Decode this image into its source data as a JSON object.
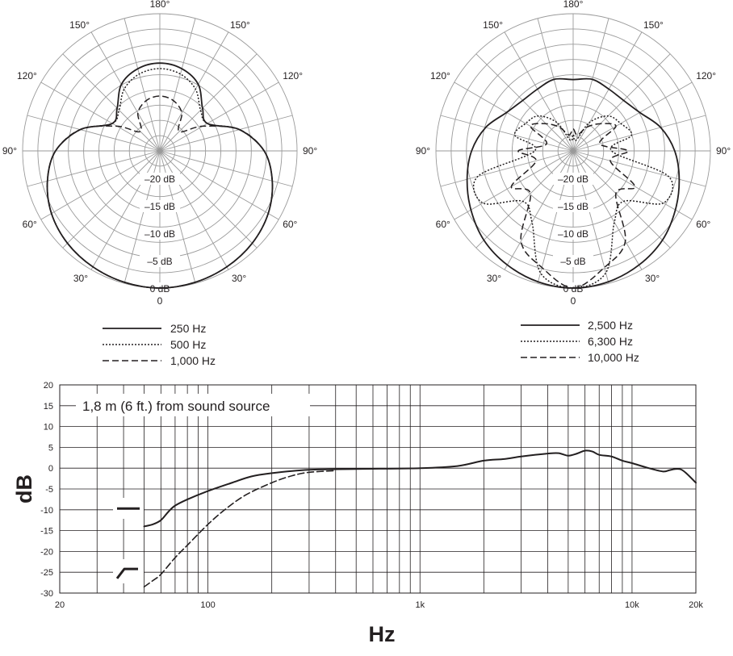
{
  "colors": {
    "ink": "#231f20",
    "grid": "#9a9a9a",
    "background": "#ffffff"
  },
  "chart_data": [
    {
      "type": "polar",
      "angle_labels": [
        "180°",
        "150°",
        "150°",
        "120°",
        "120°",
        "90°",
        "90°",
        "60°",
        "60°",
        "30°",
        "30°",
        "0"
      ],
      "ring_labels": [
        "–20 dB",
        "–15 dB",
        "–10 dB",
        "–5 dB",
        "0 dB"
      ],
      "r_range_db": [
        -25,
        0
      ],
      "grid": true,
      "legend_position": "bottom",
      "series": [
        {
          "name": "250 Hz",
          "line_style": "solid",
          "angles_deg": [
            0,
            15,
            30,
            45,
            60,
            75,
            90,
            105,
            120,
            135,
            150,
            165,
            180
          ],
          "db": [
            0,
            -0.2,
            -0.6,
            -1.2,
            -2.2,
            -3.8,
            -6,
            -10,
            -15,
            -14,
            -11,
            -9.5,
            -9
          ]
        },
        {
          "name": "500 Hz",
          "line_style": "dotted",
          "angles_deg": [
            0,
            15,
            30,
            45,
            60,
            75,
            90,
            105,
            120,
            135,
            150,
            165,
            180
          ],
          "db": [
            0,
            -0.2,
            -0.6,
            -1.2,
            -2.2,
            -3.8,
            -6,
            -10,
            -15,
            -14.5,
            -12,
            -10.5,
            -10
          ]
        },
        {
          "name": "1,000 Hz",
          "line_style": "dashed",
          "angles_deg": [
            0,
            15,
            30,
            45,
            60,
            75,
            90,
            105,
            120,
            135,
            150,
            165,
            180
          ],
          "db": [
            0,
            -0.2,
            -0.6,
            -1.2,
            -2.2,
            -3.8,
            -6,
            -10,
            -16,
            -20,
            -17,
            -15.5,
            -15
          ]
        }
      ]
    },
    {
      "type": "polar",
      "angle_labels": [
        "180°",
        "150°",
        "150°",
        "120°",
        "120°",
        "90°",
        "90°",
        "60°",
        "60°",
        "30°",
        "30°",
        "0"
      ],
      "ring_labels": [
        "–20 dB",
        "–15 dB",
        "–10 dB",
        "–5 dB",
        "0 dB"
      ],
      "r_range_db": [
        -25,
        0
      ],
      "grid": true,
      "legend_position": "bottom",
      "series": [
        {
          "name": "2,500 Hz",
          "line_style": "solid",
          "angles_deg": [
            0,
            15,
            30,
            45,
            60,
            75,
            90,
            105,
            120,
            135,
            150,
            165,
            180
          ],
          "db": [
            0,
            -0.3,
            -1,
            -2,
            -3.5,
            -5,
            -6.5,
            -8.5,
            -11,
            -12,
            -12,
            -11.5,
            -12
          ]
        },
        {
          "name": "6,300 Hz",
          "line_style": "dotted",
          "angles_deg": [
            0,
            15,
            30,
            45,
            60,
            75,
            90,
            105,
            120,
            135,
            150,
            165,
            180
          ],
          "db": [
            0,
            -2,
            -10,
            -12,
            -6,
            -7,
            -18,
            -14,
            -15,
            -16,
            -19,
            -23,
            -22
          ]
        },
        {
          "name": "10,000 Hz",
          "line_style": "dashed",
          "angles_deg": [
            0,
            15,
            30,
            45,
            60,
            75,
            90,
            105,
            120,
            135,
            150,
            165,
            180
          ],
          "db": [
            0,
            -3,
            -6,
            -14,
            -12,
            -18,
            -15,
            -20,
            -16,
            -18,
            -20,
            -22,
            -21
          ]
        }
      ]
    },
    {
      "type": "line",
      "title": "1,8 m (6 ft.) from sound source",
      "xlabel": "Hz",
      "ylabel": "dB",
      "x_scale": "log",
      "xlim": [
        20,
        20000
      ],
      "ylim": [
        -30,
        20
      ],
      "x_tick_labels": [
        {
          "value": 20,
          "label": "20"
        },
        {
          "value": 100,
          "label": "100"
        },
        {
          "value": 1000,
          "label": "1k"
        },
        {
          "value": 10000,
          "label": "10k"
        },
        {
          "value": 20000,
          "label": "20k"
        }
      ],
      "y_ticks": [
        20,
        15,
        10,
        5,
        0,
        -5,
        -10,
        -15,
        -20,
        -25,
        -30
      ],
      "y_tick_labels": [
        "20",
        "15",
        "10",
        "5",
        "0",
        "-5",
        "-10",
        "-15",
        "-20",
        "-25",
        "-30"
      ],
      "grid": true,
      "series": [
        {
          "line_style": "solid",
          "x": [
            50,
            55,
            60,
            65,
            70,
            80,
            100,
            130,
            160,
            200,
            300,
            500,
            1000,
            1500,
            2000,
            2500,
            3000,
            4000,
            4500,
            5000,
            5500,
            6000,
            6500,
            7000,
            8000,
            9000,
            10000,
            12000,
            14000,
            15000,
            16000,
            17000,
            18000,
            20000
          ],
          "y": [
            -14,
            -13.5,
            -12.5,
            -10.5,
            -9,
            -7.5,
            -5.5,
            -3.5,
            -2,
            -1.2,
            -0.4,
            -0.2,
            0,
            0.5,
            1.8,
            2.2,
            2.8,
            3.5,
            3.6,
            3,
            3.5,
            4.2,
            4,
            3.2,
            2.8,
            1.8,
            1.2,
            0,
            -0.8,
            -0.5,
            -0.2,
            -0.3,
            -1.2,
            -3.5
          ]
        },
        {
          "line_style": "dashed",
          "x": [
            50,
            55,
            60,
            70,
            80,
            100,
            120,
            150,
            200,
            250,
            300,
            400
          ],
          "y": [
            -28.5,
            -27,
            -25.5,
            -21.5,
            -18.5,
            -13.5,
            -10,
            -6.5,
            -3.5,
            -1.8,
            -1,
            -0.6
          ]
        }
      ],
      "rolloff_switch_symbols": [
        {
          "name": "flat",
          "line_style": "solid"
        },
        {
          "name": "low-cut",
          "line_style": "solid"
        }
      ]
    }
  ]
}
